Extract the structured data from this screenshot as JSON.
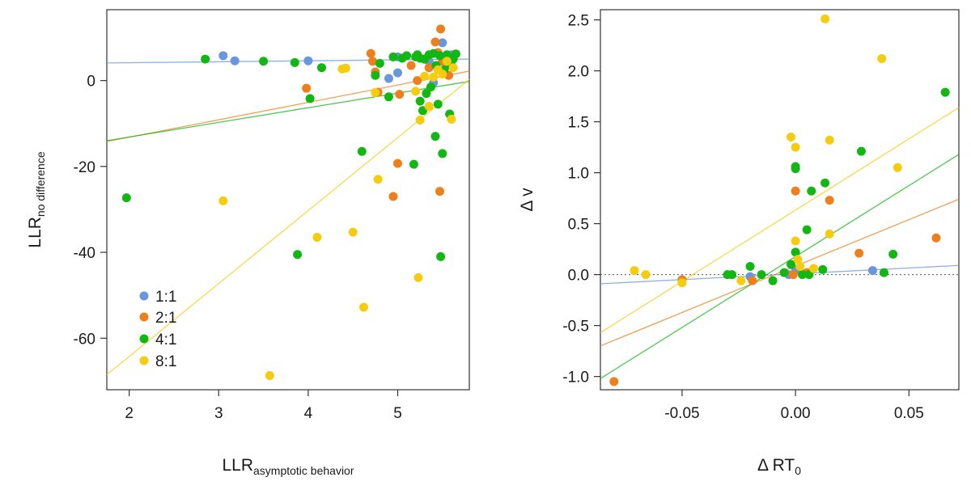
{
  "chart_data": [
    {
      "type": "scatter",
      "id": "left",
      "xlabel": {
        "main": "LLR",
        "sub": "asymptotic behavior"
      },
      "ylabel": {
        "main": "LLR",
        "sub": "no difference"
      },
      "xlim": [
        1.75,
        5.8
      ],
      "ylim": [
        -72,
        16.5
      ],
      "xticks": [
        2,
        3,
        4,
        5
      ],
      "yticks": [
        -60,
        -40,
        -20,
        0
      ],
      "legend": {
        "position": "bottom-left",
        "entries": [
          "1:1",
          "2:1",
          "4:1",
          "8:1"
        ]
      },
      "series": [
        {
          "name": "1:1",
          "color": "#6a96dd",
          "fit": [
            [
              1.75,
              4.1
            ],
            [
              5.8,
              5.0
            ]
          ],
          "points": [
            [
              3.05,
              5.8
            ],
            [
              3.18,
              4.6
            ],
            [
              4.0,
              4.6
            ],
            [
              4.9,
              0.5
            ],
            [
              5.0,
              1.8
            ],
            [
              5.0,
              5.5
            ],
            [
              5.35,
              4.5
            ],
            [
              5.4,
              -0.5
            ],
            [
              5.45,
              6.5
            ],
            [
              5.5,
              8.8
            ],
            [
              5.55,
              4.0
            ],
            [
              5.6,
              6.0
            ]
          ]
        },
        {
          "name": "2:1",
          "color": "#ed7f1c",
          "fit": [
            [
              1.75,
              -14.2
            ],
            [
              5.8,
              2.2
            ]
          ],
          "points": [
            [
              3.98,
              -1.8
            ],
            [
              4.7,
              6.3
            ],
            [
              4.72,
              4.5
            ],
            [
              4.75,
              2.0
            ],
            [
              4.78,
              -2.7
            ],
            [
              4.95,
              -27.0
            ],
            [
              5.0,
              -19.3
            ],
            [
              5.02,
              -3.2
            ],
            [
              5.15,
              3.5
            ],
            [
              5.22,
              0.0
            ],
            [
              5.3,
              5.0
            ],
            [
              5.35,
              3.0
            ],
            [
              5.42,
              9.0
            ],
            [
              5.45,
              6.5
            ],
            [
              5.47,
              -25.8
            ],
            [
              5.48,
              12.0
            ],
            [
              5.5,
              4.5
            ],
            [
              5.55,
              5.5
            ],
            [
              5.57,
              1.2
            ]
          ]
        },
        {
          "name": "4:1",
          "color": "#13b713",
          "fit": [
            [
              1.75,
              -14.0
            ],
            [
              5.8,
              -0.2
            ]
          ],
          "points": [
            [
              1.97,
              -27.3
            ],
            [
              2.85,
              5.0
            ],
            [
              3.5,
              4.5
            ],
            [
              3.85,
              4.2
            ],
            [
              3.88,
              -40.5
            ],
            [
              4.02,
              -4.2
            ],
            [
              4.15,
              3.0
            ],
            [
              4.6,
              -16.5
            ],
            [
              4.75,
              1.2
            ],
            [
              4.8,
              4.0
            ],
            [
              4.9,
              -3.8
            ],
            [
              4.95,
              5.5
            ],
            [
              5.05,
              5.2
            ],
            [
              5.1,
              5.8
            ],
            [
              5.18,
              -19.5
            ],
            [
              5.2,
              5.5
            ],
            [
              5.22,
              6.0
            ],
            [
              5.25,
              -4.8
            ],
            [
              5.25,
              5.2
            ],
            [
              5.28,
              -7.0
            ],
            [
              5.3,
              5.0
            ],
            [
              5.32,
              -3.0
            ],
            [
              5.35,
              6.0
            ],
            [
              5.37,
              -1.5
            ],
            [
              5.4,
              6.3
            ],
            [
              5.42,
              -13.0
            ],
            [
              5.43,
              3.5
            ],
            [
              5.45,
              -5.5
            ],
            [
              5.47,
              5.8
            ],
            [
              5.48,
              -41.0
            ],
            [
              5.5,
              -17.0
            ],
            [
              5.52,
              2.5
            ],
            [
              5.55,
              6.0
            ],
            [
              5.58,
              -7.8
            ],
            [
              5.6,
              3.5
            ],
            [
              5.62,
              5.0
            ],
            [
              5.65,
              6.2
            ]
          ]
        },
        {
          "name": "8:1",
          "color": "#f6cc10",
          "fit": [
            [
              1.75,
              -68.5
            ],
            [
              5.8,
              0.3
            ]
          ],
          "points": [
            [
              3.05,
              -28.0
            ],
            [
              3.57,
              -68.7
            ],
            [
              4.1,
              -36.5
            ],
            [
              4.38,
              2.7
            ],
            [
              4.42,
              2.9
            ],
            [
              4.5,
              -35.3
            ],
            [
              4.62,
              -52.8
            ],
            [
              4.75,
              -2.8
            ],
            [
              4.78,
              -23.0
            ],
            [
              5.2,
              -2.5
            ],
            [
              5.23,
              -45.9
            ],
            [
              5.25,
              -9.2
            ],
            [
              5.3,
              1.0
            ],
            [
              5.35,
              -6.0
            ],
            [
              5.4,
              0.8
            ],
            [
              5.45,
              2.5
            ],
            [
              5.5,
              1.5
            ],
            [
              5.55,
              4.5
            ],
            [
              5.6,
              -9.0
            ],
            [
              5.62,
              3.0
            ]
          ]
        }
      ]
    },
    {
      "type": "scatter",
      "id": "right",
      "xlabel": {
        "main": "Δ RT",
        "sub": "0"
      },
      "ylabel": {
        "main": "Δ v",
        "sub": ""
      },
      "xlim": [
        -0.086,
        0.072
      ],
      "ylim": [
        -1.13,
        2.6
      ],
      "xticks": [
        -0.05,
        0.0,
        0.05
      ],
      "xtick_labels": [
        "-0.05",
        "0.00",
        "0.05"
      ],
      "yticks": [
        -1.0,
        -0.5,
        0.0,
        0.5,
        1.0,
        1.5,
        2.0,
        2.5
      ],
      "ytick_labels": [
        "-1.0",
        "-0.5",
        "0.0",
        "0.5",
        "1.0",
        "1.5",
        "2.0",
        "2.5"
      ],
      "reference_line": {
        "y": 0,
        "style": "dotted"
      },
      "series": [
        {
          "name": "1:1",
          "color": "#6a96dd",
          "fit": [
            [
              -0.086,
              -0.09
            ],
            [
              0.072,
              0.09
            ]
          ],
          "points": [
            [
              -0.02,
              -0.02
            ],
            [
              -0.003,
              0.0
            ],
            [
              0.0,
              0.05
            ],
            [
              0.034,
              0.04
            ]
          ]
        },
        {
          "name": "2:1",
          "color": "#ed7f1c",
          "fit": [
            [
              -0.086,
              -0.7
            ],
            [
              0.072,
              0.74
            ]
          ],
          "points": [
            [
              -0.08,
              -1.05
            ],
            [
              -0.05,
              -0.05
            ],
            [
              -0.019,
              -0.06
            ],
            [
              -0.001,
              0.0
            ],
            [
              0.0,
              0.82
            ],
            [
              0.005,
              0.02
            ],
            [
              0.015,
              0.73
            ],
            [
              0.028,
              0.21
            ],
            [
              0.062,
              0.36
            ]
          ]
        },
        {
          "name": "4:1",
          "color": "#13b713",
          "fit": [
            [
              -0.086,
              -1.02
            ],
            [
              0.072,
              1.18
            ]
          ],
          "points": [
            [
              -0.03,
              0.0
            ],
            [
              -0.028,
              0.0
            ],
            [
              -0.02,
              0.08
            ],
            [
              -0.015,
              0.0
            ],
            [
              -0.01,
              -0.06
            ],
            [
              -0.005,
              0.02
            ],
            [
              -0.002,
              0.1
            ],
            [
              0.0,
              0.22
            ],
            [
              0.0,
              1.04
            ],
            [
              0.0,
              1.06
            ],
            [
              0.003,
              0.0
            ],
            [
              0.005,
              0.44
            ],
            [
              0.006,
              0.0
            ],
            [
              0.007,
              0.82
            ],
            [
              0.012,
              0.05
            ],
            [
              0.013,
              0.9
            ],
            [
              0.029,
              1.21
            ],
            [
              0.039,
              0.02
            ],
            [
              0.043,
              0.2
            ],
            [
              0.066,
              1.79
            ]
          ]
        },
        {
          "name": "8:1",
          "color": "#f6cc10",
          "fit": [
            [
              -0.086,
              -0.57
            ],
            [
              0.072,
              1.64
            ]
          ],
          "points": [
            [
              -0.071,
              0.04
            ],
            [
              -0.066,
              0.0
            ],
            [
              -0.05,
              -0.08
            ],
            [
              -0.024,
              -0.06
            ],
            [
              -0.002,
              1.35
            ],
            [
              0.0,
              0.33
            ],
            [
              0.0,
              1.25
            ],
            [
              0.001,
              0.15
            ],
            [
              0.002,
              0.08
            ],
            [
              0.008,
              0.06
            ],
            [
              0.013,
              2.51
            ],
            [
              0.015,
              0.4
            ],
            [
              0.015,
              1.32
            ],
            [
              0.038,
              2.12
            ],
            [
              0.045,
              1.05
            ]
          ]
        }
      ]
    }
  ]
}
